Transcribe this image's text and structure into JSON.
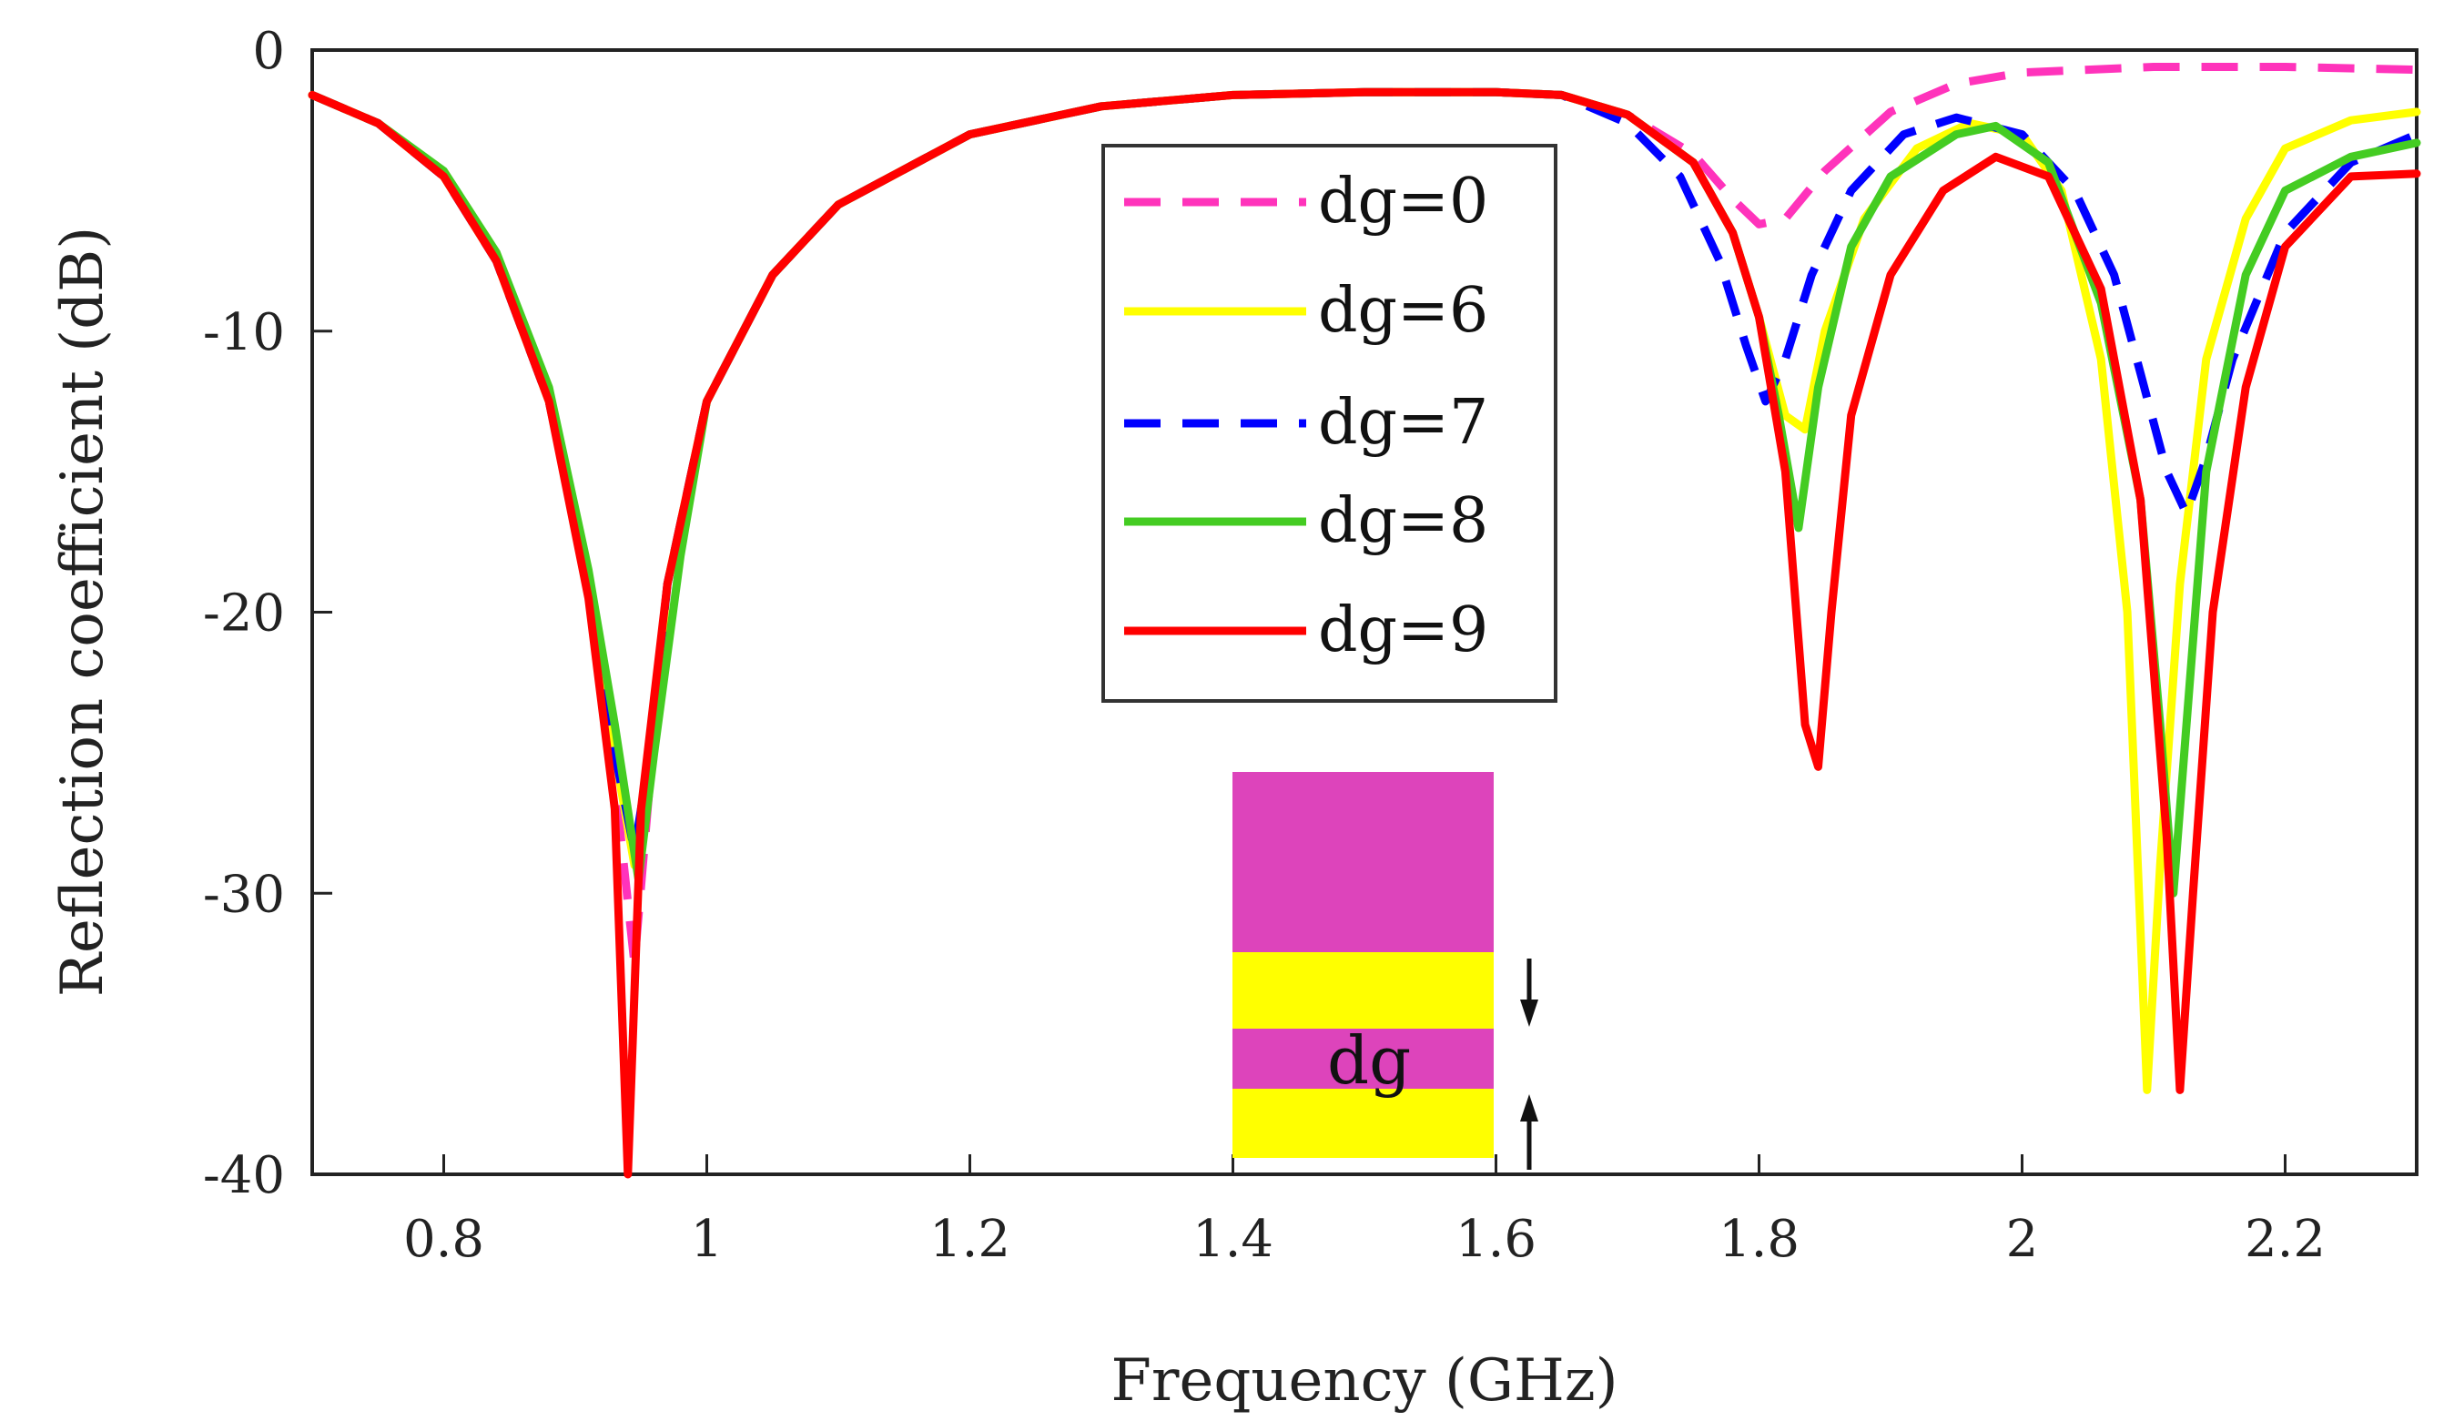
{
  "chart_data": {
    "type": "line",
    "title": "",
    "xlabel": "Frequency (GHz)",
    "ylabel": "Reflection coefficient (dB)",
    "xlim": [
      0.7,
      2.3
    ],
    "ylim": [
      -40,
      0
    ],
    "xticks": [
      "0.8",
      "1",
      "1.2",
      "1.4",
      "1.6",
      "1.8",
      "2",
      "2.2"
    ],
    "xtick_values": [
      0.8,
      1.0,
      1.2,
      1.4,
      1.6,
      1.8,
      2.0,
      2.2
    ],
    "yticks": [
      "0",
      "-10",
      "-20",
      "-30",
      "-40"
    ],
    "ytick_values": [
      0,
      -10,
      -20,
      -30,
      -40
    ],
    "grid": false,
    "legend_position": "top-center",
    "series": [
      {
        "name": "dg=0",
        "color": "#ff33bb",
        "dash": "dashed",
        "points": [
          [
            0.7,
            -1.6
          ],
          [
            0.75,
            -2.6
          ],
          [
            0.8,
            -4.5
          ],
          [
            0.84,
            -7.5
          ],
          [
            0.88,
            -12.5
          ],
          [
            0.91,
            -19
          ],
          [
            0.93,
            -26
          ],
          [
            0.945,
            -32.5
          ],
          [
            0.955,
            -27
          ],
          [
            0.97,
            -19
          ],
          [
            1.0,
            -12.5
          ],
          [
            1.05,
            -8
          ],
          [
            1.1,
            -5.5
          ],
          [
            1.2,
            -3
          ],
          [
            1.3,
            -2
          ],
          [
            1.4,
            -1.6
          ],
          [
            1.5,
            -1.5
          ],
          [
            1.6,
            -1.5
          ],
          [
            1.65,
            -1.6
          ],
          [
            1.7,
            -2.3
          ],
          [
            1.75,
            -3.7
          ],
          [
            1.78,
            -5.3
          ],
          [
            1.8,
            -6.2
          ],
          [
            1.82,
            -6
          ],
          [
            1.85,
            -4.3
          ],
          [
            1.9,
            -2.2
          ],
          [
            1.95,
            -1.2
          ],
          [
            2.0,
            -0.8
          ],
          [
            2.1,
            -0.6
          ],
          [
            2.2,
            -0.6
          ],
          [
            2.3,
            -0.7
          ]
        ]
      },
      {
        "name": "dg=6",
        "color": "#ffff00",
        "dash": "solid",
        "points": [
          [
            0.7,
            -1.6
          ],
          [
            0.75,
            -2.6
          ],
          [
            0.8,
            -4.5
          ],
          [
            0.84,
            -7.5
          ],
          [
            0.88,
            -12.5
          ],
          [
            0.91,
            -19
          ],
          [
            0.93,
            -25
          ],
          [
            0.945,
            -29
          ],
          [
            0.955,
            -26
          ],
          [
            0.97,
            -19
          ],
          [
            1.0,
            -12.5
          ],
          [
            1.05,
            -8
          ],
          [
            1.1,
            -5.5
          ],
          [
            1.2,
            -3
          ],
          [
            1.3,
            -2
          ],
          [
            1.4,
            -1.6
          ],
          [
            1.5,
            -1.5
          ],
          [
            1.6,
            -1.5
          ],
          [
            1.65,
            -1.6
          ],
          [
            1.7,
            -2.3
          ],
          [
            1.75,
            -4
          ],
          [
            1.78,
            -6.5
          ],
          [
            1.8,
            -9.5
          ],
          [
            1.82,
            -13
          ],
          [
            1.835,
            -13.5
          ],
          [
            1.85,
            -10
          ],
          [
            1.88,
            -6
          ],
          [
            1.92,
            -3.5
          ],
          [
            1.96,
            -2.6
          ],
          [
            2.0,
            -3
          ],
          [
            2.03,
            -5
          ],
          [
            2.06,
            -11
          ],
          [
            2.08,
            -20
          ],
          [
            2.095,
            -37
          ],
          [
            2.105,
            -29
          ],
          [
            2.12,
            -19
          ],
          [
            2.14,
            -11
          ],
          [
            2.17,
            -6
          ],
          [
            2.2,
            -3.5
          ],
          [
            2.25,
            -2.5
          ],
          [
            2.3,
            -2.2
          ]
        ]
      },
      {
        "name": "dg=7",
        "color": "#0000ff",
        "dash": "dashed",
        "points": [
          [
            0.7,
            -1.6
          ],
          [
            0.75,
            -2.6
          ],
          [
            0.8,
            -4.5
          ],
          [
            0.84,
            -7.5
          ],
          [
            0.88,
            -12.5
          ],
          [
            0.91,
            -19
          ],
          [
            0.93,
            -25
          ],
          [
            0.945,
            -28.5
          ],
          [
            0.955,
            -25.5
          ],
          [
            0.97,
            -19
          ],
          [
            1.0,
            -12.5
          ],
          [
            1.05,
            -8
          ],
          [
            1.1,
            -5.5
          ],
          [
            1.2,
            -3
          ],
          [
            1.3,
            -2
          ],
          [
            1.4,
            -1.6
          ],
          [
            1.5,
            -1.5
          ],
          [
            1.6,
            -1.5
          ],
          [
            1.65,
            -1.6
          ],
          [
            1.7,
            -2.6
          ],
          [
            1.74,
            -4.5
          ],
          [
            1.77,
            -7.5
          ],
          [
            1.79,
            -10.5
          ],
          [
            1.805,
            -12.5
          ],
          [
            1.82,
            -11
          ],
          [
            1.84,
            -8
          ],
          [
            1.87,
            -5
          ],
          [
            1.91,
            -3
          ],
          [
            1.95,
            -2.4
          ],
          [
            2.0,
            -3
          ],
          [
            2.04,
            -5
          ],
          [
            2.07,
            -8
          ],
          [
            2.09,
            -11.5
          ],
          [
            2.11,
            -15
          ],
          [
            2.125,
            -16.5
          ],
          [
            2.14,
            -14.5
          ],
          [
            2.16,
            -11
          ],
          [
            2.2,
            -6.5
          ],
          [
            2.25,
            -4
          ],
          [
            2.3,
            -3
          ]
        ]
      },
      {
        "name": "dg=8",
        "color": "#44cc22",
        "dash": "solid",
        "points": [
          [
            0.7,
            -1.6
          ],
          [
            0.75,
            -2.6
          ],
          [
            0.8,
            -4.3
          ],
          [
            0.84,
            -7.2
          ],
          [
            0.88,
            -12
          ],
          [
            0.91,
            -18.5
          ],
          [
            0.93,
            -24
          ],
          [
            0.948,
            -29.5
          ],
          [
            0.96,
            -25
          ],
          [
            0.98,
            -18
          ],
          [
            1.0,
            -12.5
          ],
          [
            1.05,
            -8
          ],
          [
            1.1,
            -5.5
          ],
          [
            1.2,
            -3
          ],
          [
            1.3,
            -2
          ],
          [
            1.4,
            -1.6
          ],
          [
            1.5,
            -1.5
          ],
          [
            1.6,
            -1.5
          ],
          [
            1.65,
            -1.6
          ],
          [
            1.7,
            -2.3
          ],
          [
            1.75,
            -4
          ],
          [
            1.78,
            -6.5
          ],
          [
            1.8,
            -9.5
          ],
          [
            1.815,
            -13
          ],
          [
            1.83,
            -17
          ],
          [
            1.845,
            -12
          ],
          [
            1.87,
            -7
          ],
          [
            1.9,
            -4.5
          ],
          [
            1.95,
            -3
          ],
          [
            1.98,
            -2.7
          ],
          [
            2.02,
            -4
          ],
          [
            2.06,
            -9
          ],
          [
            2.09,
            -16
          ],
          [
            2.105,
            -24
          ],
          [
            2.115,
            -30
          ],
          [
            2.125,
            -24
          ],
          [
            2.14,
            -15
          ],
          [
            2.17,
            -8
          ],
          [
            2.2,
            -5
          ],
          [
            2.25,
            -3.8
          ],
          [
            2.3,
            -3.3
          ]
        ]
      },
      {
        "name": "dg=9",
        "color": "#ff0000",
        "dash": "solid",
        "points": [
          [
            0.7,
            -1.6
          ],
          [
            0.75,
            -2.6
          ],
          [
            0.8,
            -4.5
          ],
          [
            0.84,
            -7.5
          ],
          [
            0.88,
            -12.5
          ],
          [
            0.91,
            -19.5
          ],
          [
            0.93,
            -27
          ],
          [
            0.94,
            -40
          ],
          [
            0.95,
            -27
          ],
          [
            0.97,
            -19
          ],
          [
            1.0,
            -12.5
          ],
          [
            1.05,
            -8
          ],
          [
            1.1,
            -5.5
          ],
          [
            1.2,
            -3
          ],
          [
            1.3,
            -2
          ],
          [
            1.4,
            -1.6
          ],
          [
            1.5,
            -1.5
          ],
          [
            1.6,
            -1.5
          ],
          [
            1.65,
            -1.6
          ],
          [
            1.7,
            -2.3
          ],
          [
            1.75,
            -4
          ],
          [
            1.78,
            -6.5
          ],
          [
            1.8,
            -9.5
          ],
          [
            1.82,
            -15
          ],
          [
            1.835,
            -24
          ],
          [
            1.845,
            -25.5
          ],
          [
            1.855,
            -20
          ],
          [
            1.87,
            -13
          ],
          [
            1.9,
            -8
          ],
          [
            1.94,
            -5
          ],
          [
            1.98,
            -3.8
          ],
          [
            2.02,
            -4.5
          ],
          [
            2.06,
            -8.5
          ],
          [
            2.09,
            -16
          ],
          [
            2.11,
            -28
          ],
          [
            2.12,
            -37
          ],
          [
            2.13,
            -30
          ],
          [
            2.145,
            -20
          ],
          [
            2.17,
            -12
          ],
          [
            2.2,
            -7
          ],
          [
            2.25,
            -4.5
          ],
          [
            2.3,
            -4.4
          ]
        ]
      }
    ]
  },
  "inset": {
    "label": "dg",
    "layer_colors": [
      "#dd44bb",
      "#ffff00",
      "#dd44bb",
      "#ffff00"
    ]
  }
}
